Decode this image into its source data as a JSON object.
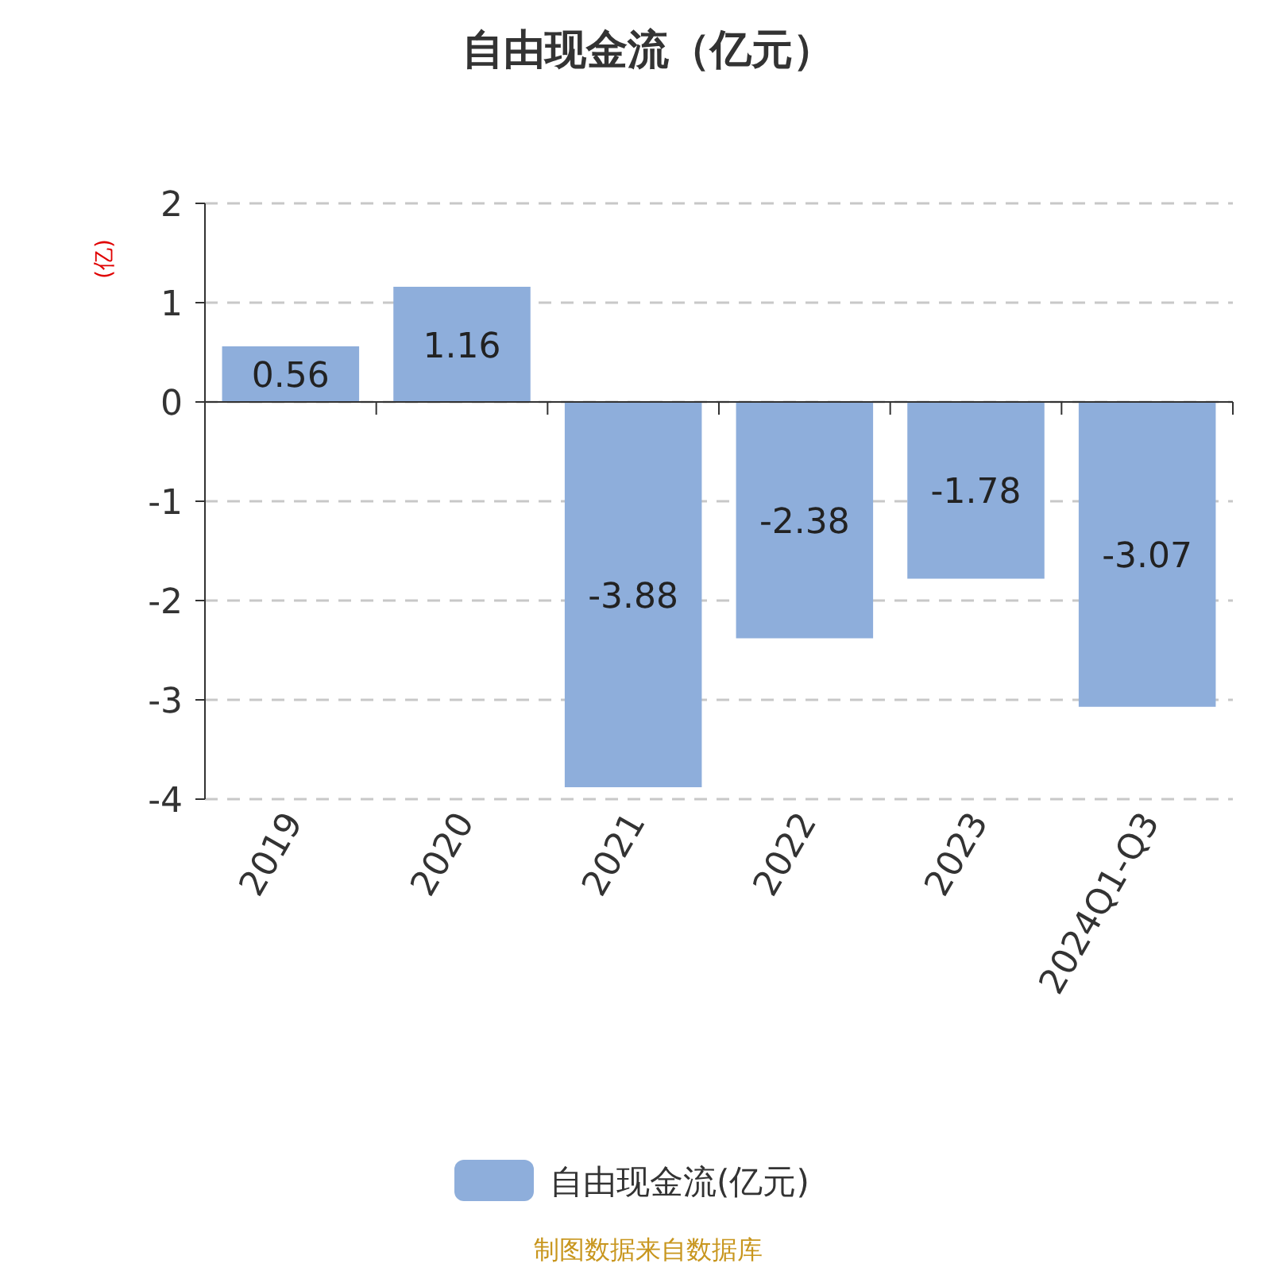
{
  "chart_data": {
    "type": "bar",
    "title": "自由现金流（亿元）",
    "ylabel": "(亿)",
    "categories": [
      "2019",
      "2020",
      "2021",
      "2022",
      "2023",
      "2024Q1-Q3"
    ],
    "series": [
      {
        "name": "自由现金流(亿元)",
        "color": "#8eaedb",
        "values": [
          0.56,
          1.16,
          -3.88,
          -2.38,
          -1.78,
          -3.07
        ]
      }
    ],
    "ylim": [
      -4,
      2
    ],
    "yticks": [
      -4,
      -3,
      -2,
      -1,
      0,
      1,
      2
    ],
    "grid": "y",
    "legend": "bottom",
    "data_labels": true,
    "annotations": [
      "制图数据来自数据库"
    ]
  }
}
